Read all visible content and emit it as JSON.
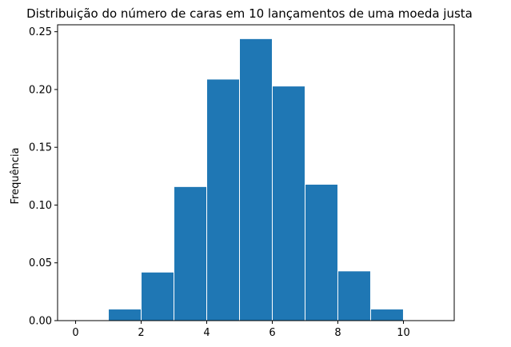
{
  "chart_data": {
    "type": "bar",
    "title": "Distribuição do número de caras em 10 lançamentos de uma moeda justa",
    "xlabel": "",
    "ylabel": "Frequência",
    "bar_color": "#1f77b4",
    "edge_color": "#ffffff",
    "xlim": [
      -0.55,
      11.55
    ],
    "ylim": [
      0,
      0.256
    ],
    "xticks": [
      0,
      2,
      4,
      6,
      8,
      10
    ],
    "yticks": [
      0.0,
      0.05,
      0.1,
      0.15,
      0.2,
      0.25
    ],
    "xtick_labels": [
      "0",
      "2",
      "4",
      "6",
      "8",
      "10"
    ],
    "ytick_labels": [
      "0.00",
      "0.05",
      "0.10",
      "0.15",
      "0.20",
      "0.25"
    ],
    "bins": [
      {
        "x0": 0,
        "x1": 1,
        "value": 0.0
      },
      {
        "x0": 1,
        "x1": 2,
        "value": 0.01
      },
      {
        "x0": 2,
        "x1": 3,
        "value": 0.042
      },
      {
        "x0": 3,
        "x1": 4,
        "value": 0.116
      },
      {
        "x0": 4,
        "x1": 5,
        "value": 0.209
      },
      {
        "x0": 5,
        "x1": 6,
        "value": 0.244
      },
      {
        "x0": 6,
        "x1": 7,
        "value": 0.203
      },
      {
        "x0": 7,
        "x1": 8,
        "value": 0.118
      },
      {
        "x0": 8,
        "x1": 9,
        "value": 0.043
      },
      {
        "x0": 9,
        "x1": 10,
        "value": 0.01
      },
      {
        "x0": 10,
        "x1": 11,
        "value": 0.0
      }
    ],
    "grid": false,
    "legend": "none"
  }
}
